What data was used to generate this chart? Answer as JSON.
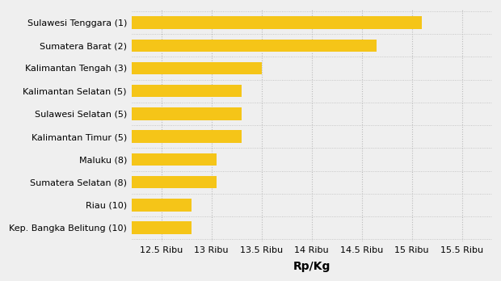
{
  "categories": [
    "Sulawesi Tenggara (1)",
    "Sumatera Barat (2)",
    "Kalimantan Tengah (3)",
    "Kalimantan Selatan (5)",
    "Sulawesi Selatan (5)",
    "Kalimantan Timur (5)",
    "Maluku (8)",
    "Sumatera Selatan (8)",
    "Riau (10)",
    "Kep. Bangka Belitung (10)"
  ],
  "values": [
    15100,
    14650,
    13500,
    13300,
    13300,
    13300,
    13050,
    13050,
    12800,
    12800
  ],
  "bar_color": "#F5C518",
  "xlabel": "Rp/Kg",
  "xlim": [
    12200,
    15800
  ],
  "xticks": [
    12500,
    13000,
    13500,
    14000,
    14500,
    15000,
    15500
  ],
  "xtick_labels": [
    "12.5 Ribu",
    "13 Ribu",
    "13.5 Ribu",
    "14 Ribu",
    "14.5 Ribu",
    "15 Ribu",
    "15.5 Ribu"
  ],
  "background_color": "#efefef",
  "plot_background": "#efefef",
  "bar_height": 0.55,
  "ylabel_fontsize": 8,
  "xlabel_fontsize": 10,
  "tick_fontsize": 8,
  "xlabel_fontweight": "bold"
}
